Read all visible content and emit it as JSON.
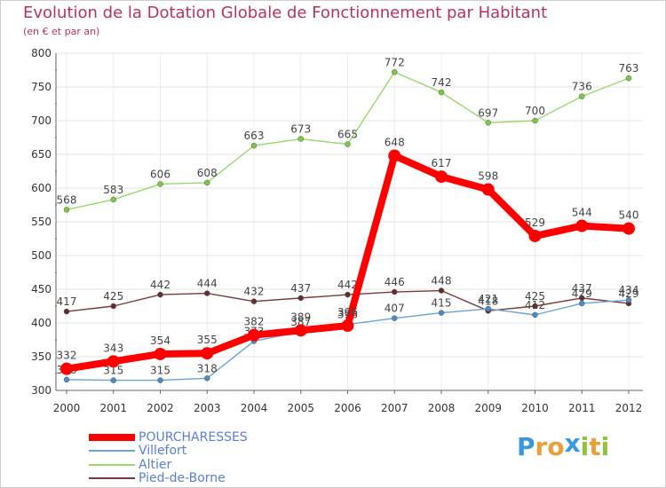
{
  "header": {
    "title": "Evolution de la Dotation Globale de Fonctionnement par Habitant",
    "subtitle": "(en € et par an)"
  },
  "brand": {
    "letters": [
      "P",
      "r",
      "o",
      "x",
      "i",
      "t",
      "i"
    ],
    "colors": [
      "#3a9ad9",
      "#e8a13a",
      "#e8a13a",
      "#3a9ad9",
      "#8cc43c",
      "#e8a13a",
      "#8cc43c"
    ]
  },
  "chart_data": {
    "type": "line",
    "title": "Evolution de la Dotation Globale de Fonctionnement par Habitant",
    "subtitle": "(en € et par an)",
    "xlabel": "",
    "ylabel": "",
    "x": [
      "2000",
      "2001",
      "2002",
      "2003",
      "2004",
      "2005",
      "2006",
      "2007",
      "2008",
      "2009",
      "2010",
      "2011",
      "2012"
    ],
    "ylim": [
      300,
      800
    ],
    "yticks": [
      300,
      350,
      400,
      450,
      500,
      550,
      600,
      650,
      700,
      750,
      800
    ],
    "grid": true,
    "legend_position": "bottom-left",
    "series": [
      {
        "name": "Altier",
        "color": "#99d96b",
        "markerColor": "#7ac943",
        "emphasis": false,
        "values": [
          568,
          583,
          606,
          608,
          663,
          673,
          665,
          772,
          742,
          697,
          700,
          736,
          763
        ],
        "labels": [
          "568",
          "583",
          "606",
          "608",
          "663",
          "673",
          "665",
          "772",
          "742",
          "697",
          "700",
          "736",
          "763"
        ]
      },
      {
        "name": "Pied-de-Borne",
        "color": "#7a3a3a",
        "markerColor": "#6b2a2a",
        "emphasis": false,
        "values": [
          417,
          425,
          442,
          444,
          432,
          437,
          442,
          446,
          448,
          418,
          425,
          437,
          429
        ],
        "labels": [
          "417",
          "425",
          "442",
          "444",
          "432",
          "437",
          "442",
          "446",
          "448",
          "418",
          "425",
          "437",
          "429"
        ]
      },
      {
        "name": "Villefort",
        "color": "#6aa3d5",
        "markerColor": "#4a8cc9",
        "emphasis": false,
        "values": [
          316,
          315,
          315,
          318,
          373,
          387,
          398,
          407,
          415,
          421,
          412,
          429,
          434
        ],
        "labels": [
          "316",
          "315",
          "315",
          "318",
          "373",
          "387",
          "398",
          "407",
          "415",
          "421",
          "412",
          "429",
          "434"
        ]
      },
      {
        "name": "POURCHARESSES",
        "color": "#ff0000",
        "markerColor": "#ff0000",
        "emphasis": true,
        "values": [
          332,
          343,
          354,
          355,
          382,
          389,
          396,
          648,
          617,
          598,
          529,
          544,
          540
        ],
        "labels": [
          "332",
          "343",
          "354",
          "355",
          "382",
          "389",
          "396",
          "648",
          "617",
          "598",
          "529",
          "544",
          "540"
        ]
      }
    ],
    "legend": [
      {
        "name": "POURCHARESSES",
        "color": "#ff0000",
        "thick": true
      },
      {
        "name": "Villefort",
        "color": "#6aa3d5",
        "thick": false
      },
      {
        "name": "Altier",
        "color": "#99d96b",
        "thick": false
      },
      {
        "name": "Pied-de-Borne",
        "color": "#7a3a3a",
        "thick": false
      }
    ]
  }
}
